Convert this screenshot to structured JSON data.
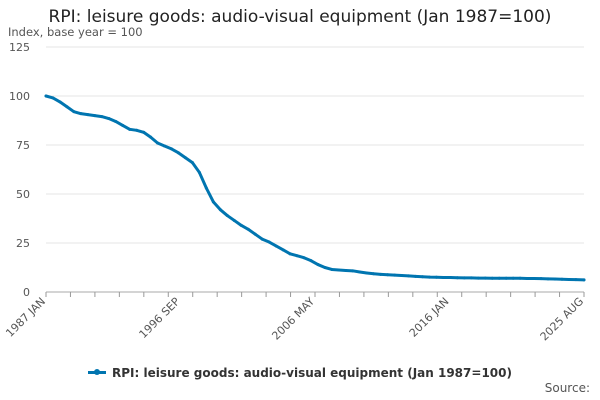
{
  "chart_data": {
    "type": "line",
    "title": "RPI: leisure goods: audio-visual equipment (Jan 1987=100)",
    "subtitle": "Index, base year = 100",
    "ylabel": "Index, base year = 100",
    "xlabel": "",
    "ylim": [
      0,
      125
    ],
    "y_ticks": [
      0,
      25,
      50,
      75,
      100,
      125
    ],
    "x_tick_labels": [
      "1987 JAN",
      "1996 SEP",
      "2006 MAY",
      "2016 JAN",
      "2025 AUG"
    ],
    "grid": true,
    "legend_position": "bottom",
    "source_label": "Source:",
    "series": [
      {
        "name": "RPI: leisure goods: audio-visual equipment (Jan 1987=100)",
        "color": "#0075b0",
        "x": [
          1987.0,
          1987.5,
          1988.0,
          1988.5,
          1989.0,
          1989.5,
          1990.0,
          1990.5,
          1991.0,
          1991.5,
          1992.0,
          1992.5,
          1993.0,
          1993.5,
          1994.0,
          1994.5,
          1995.0,
          1995.5,
          1996.0,
          1996.5,
          1997.0,
          1997.5,
          1998.0,
          1998.5,
          1999.0,
          1999.5,
          2000.0,
          2000.5,
          2001.0,
          2001.5,
          2002.0,
          2002.5,
          2003.0,
          2003.5,
          2004.0,
          2004.5,
          2005.0,
          2005.5,
          2006.0,
          2006.5,
          2007.0,
          2007.5,
          2008.0,
          2008.5,
          2009.0,
          2009.5,
          2010.0,
          2010.5,
          2011.0,
          2011.5,
          2012.0,
          2012.5,
          2013.0,
          2013.5,
          2014.0,
          2014.5,
          2015.0,
          2015.5,
          2016.0,
          2016.5,
          2017.0,
          2017.5,
          2018.0,
          2018.5,
          2019.0,
          2019.5,
          2020.0,
          2020.5,
          2021.0,
          2021.5,
          2022.0,
          2022.5,
          2023.0,
          2023.5,
          2024.0,
          2024.5,
          2025.0,
          2025.58
        ],
        "values": [
          100,
          99,
          97,
          94.5,
          92,
          91,
          90.5,
          90,
          89.5,
          88.5,
          87,
          85,
          83,
          82.5,
          81.5,
          79,
          76,
          74.5,
          73,
          71,
          68.5,
          66,
          61,
          53,
          46,
          42,
          39,
          36.5,
          34,
          32,
          29.5,
          27,
          25.5,
          23.5,
          21.5,
          19.5,
          18.5,
          17.5,
          16,
          14,
          12.5,
          11.5,
          11.2,
          11,
          10.8,
          10.2,
          9.7,
          9.3,
          9,
          8.8,
          8.6,
          8.4,
          8.2,
          8,
          7.8,
          7.6,
          7.5,
          7.4,
          7.4,
          7.3,
          7.2,
          7.2,
          7.1,
          7.1,
          7,
          7,
          7,
          7,
          7,
          6.9,
          6.9,
          6.8,
          6.7,
          6.6,
          6.5,
          6.4,
          6.3,
          6.2
        ]
      }
    ]
  }
}
